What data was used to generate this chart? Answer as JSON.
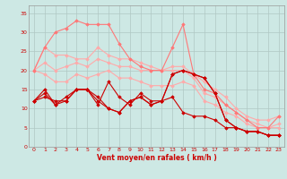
{
  "xlabel": "Vent moyen/en rafales ( km/h )",
  "background_color": "#cde8e4",
  "grid_color": "#b0c8c4",
  "x_values": [
    0,
    1,
    2,
    3,
    4,
    5,
    6,
    7,
    8,
    9,
    10,
    11,
    12,
    13,
    14,
    15,
    16,
    17,
    18,
    19,
    20,
    21,
    22,
    23
  ],
  "ylim": [
    0,
    37
  ],
  "yticks": [
    0,
    5,
    10,
    15,
    20,
    25,
    30,
    35
  ],
  "xlim": [
    -0.5,
    23.5
  ],
  "series": [
    {
      "color": "#ffaaaa",
      "linewidth": 0.8,
      "marker": "D",
      "markersize": 1.8,
      "values": [
        20,
        26,
        24,
        24,
        23,
        23,
        26,
        24,
        23,
        23,
        22,
        21,
        20,
        21,
        21,
        19,
        17,
        15,
        13,
        10,
        8,
        7,
        7,
        8
      ]
    },
    {
      "color": "#ffaaaa",
      "linewidth": 0.8,
      "marker": "D",
      "markersize": 1.8,
      "values": [
        20,
        22,
        20,
        21,
        22,
        21,
        23,
        22,
        21,
        21,
        20,
        20,
        20,
        20,
        20,
        18,
        14,
        13,
        11,
        9,
        7,
        6,
        5,
        6
      ]
    },
    {
      "color": "#ffaaaa",
      "linewidth": 0.8,
      "marker": "D",
      "markersize": 1.8,
      "values": [
        20,
        19,
        17,
        17,
        19,
        18,
        19,
        20,
        18,
        18,
        17,
        16,
        16,
        16,
        17,
        16,
        12,
        11,
        9,
        8,
        6,
        5,
        5,
        5
      ]
    },
    {
      "color": "#ff7777",
      "linewidth": 0.8,
      "marker": "D",
      "markersize": 1.8,
      "values": [
        20,
        26,
        30,
        31,
        33,
        32,
        32,
        32,
        27,
        23,
        21,
        20,
        20,
        26,
        32,
        19,
        15,
        14,
        11,
        9,
        7,
        5,
        5,
        8
      ]
    },
    {
      "color": "#cc0000",
      "linewidth": 0.8,
      "marker": "D",
      "markersize": 1.8,
      "values": [
        12,
        13,
        12,
        12,
        15,
        15,
        12,
        10,
        9,
        12,
        13,
        11,
        12,
        13,
        9,
        8,
        8,
        7,
        5,
        5,
        4,
        4,
        3,
        3
      ]
    },
    {
      "color": "#cc0000",
      "linewidth": 0.8,
      "marker": "D",
      "markersize": 1.8,
      "values": [
        12,
        15,
        11,
        13,
        15,
        15,
        11,
        17,
        13,
        11,
        14,
        12,
        12,
        19,
        20,
        19,
        18,
        14,
        7,
        5,
        4,
        4,
        3,
        3
      ]
    },
    {
      "color": "#cc0000",
      "linewidth": 0.8,
      "marker": "D",
      "markersize": 1.8,
      "values": [
        12,
        14,
        11,
        12,
        15,
        15,
        13,
        10,
        9,
        12,
        13,
        11,
        12,
        19,
        20,
        19,
        18,
        14,
        7,
        5,
        4,
        4,
        3,
        3
      ]
    }
  ]
}
